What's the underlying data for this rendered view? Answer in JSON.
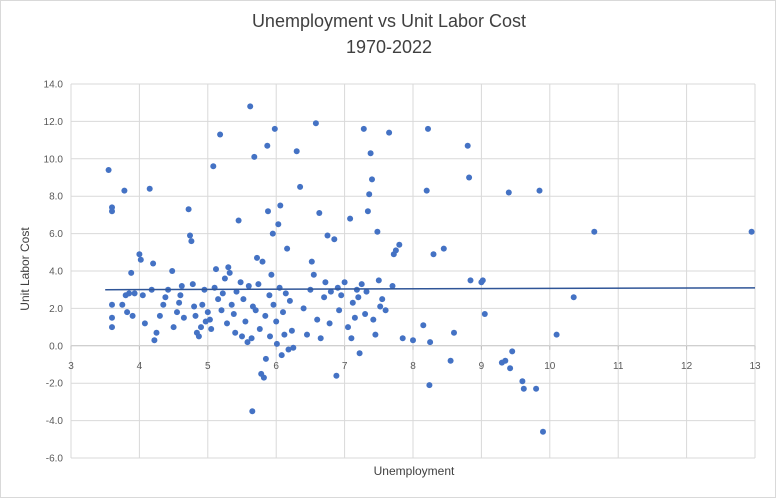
{
  "chart_data": {
    "type": "scatter",
    "title": "Unemployment vs Unit Labor Cost",
    "subtitle": "1970-2022",
    "xlabel": "Unemployment",
    "ylabel": "Unit Labor Cost",
    "xlim": [
      3,
      13
    ],
    "ylim": [
      -6,
      14
    ],
    "x_ticks": [
      "3",
      "4",
      "5",
      "6",
      "7",
      "8",
      "9",
      "10",
      "11",
      "12",
      "13"
    ],
    "y_ticks": [
      "-6.0",
      "-4.0",
      "-2.0",
      "0.0",
      "2.0",
      "4.0",
      "6.0",
      "8.0",
      "10.0",
      "12.0",
      "14.0"
    ],
    "grid": true,
    "legend": "none",
    "colors": {
      "points": "#4472c4",
      "trendline": "#2f5597",
      "grid": "#d9d9d9",
      "axis": "#bfbfbf"
    },
    "trendline": {
      "type": "linear",
      "x": [
        3.5,
        13
      ],
      "y": [
        3.0,
        3.1
      ]
    },
    "series": [
      {
        "points": [
          [
            3.55,
            9.4
          ],
          [
            3.6,
            7.4
          ],
          [
            3.6,
            7.2
          ],
          [
            3.6,
            2.2
          ],
          [
            3.6,
            1.5
          ],
          [
            3.6,
            1.0
          ],
          [
            3.75,
            2.2
          ],
          [
            3.78,
            8.3
          ],
          [
            3.8,
            2.7
          ],
          [
            3.82,
            1.8
          ],
          [
            3.85,
            2.8
          ],
          [
            3.88,
            3.9
          ],
          [
            3.9,
            1.6
          ],
          [
            3.93,
            2.8
          ],
          [
            4.0,
            4.9
          ],
          [
            4.02,
            4.6
          ],
          [
            4.05,
            2.7
          ],
          [
            4.08,
            1.2
          ],
          [
            4.15,
            8.4
          ],
          [
            4.18,
            3.0
          ],
          [
            4.2,
            4.4
          ],
          [
            4.22,
            0.3
          ],
          [
            4.25,
            0.7
          ],
          [
            4.3,
            1.6
          ],
          [
            4.35,
            2.2
          ],
          [
            4.38,
            2.6
          ],
          [
            4.42,
            3.0
          ],
          [
            4.48,
            4.0
          ],
          [
            4.5,
            1.0
          ],
          [
            4.55,
            1.8
          ],
          [
            4.58,
            2.3
          ],
          [
            4.6,
            2.7
          ],
          [
            4.62,
            3.2
          ],
          [
            4.65,
            1.5
          ],
          [
            4.72,
            7.3
          ],
          [
            4.74,
            5.9
          ],
          [
            4.76,
            5.6
          ],
          [
            4.78,
            3.3
          ],
          [
            4.8,
            2.1
          ],
          [
            4.82,
            1.6
          ],
          [
            4.84,
            0.7
          ],
          [
            4.87,
            0.5
          ],
          [
            4.9,
            1.0
          ],
          [
            4.92,
            2.2
          ],
          [
            4.95,
            3.0
          ],
          [
            4.97,
            1.3
          ],
          [
            5.0,
            1.8
          ],
          [
            5.03,
            1.4
          ],
          [
            5.05,
            0.9
          ],
          [
            5.08,
            9.6
          ],
          [
            5.1,
            3.1
          ],
          [
            5.12,
            4.1
          ],
          [
            5.15,
            2.5
          ],
          [
            5.18,
            11.3
          ],
          [
            5.2,
            1.9
          ],
          [
            5.22,
            2.8
          ],
          [
            5.25,
            3.6
          ],
          [
            5.28,
            1.2
          ],
          [
            5.3,
            4.2
          ],
          [
            5.32,
            3.9
          ],
          [
            5.35,
            2.2
          ],
          [
            5.38,
            1.7
          ],
          [
            5.4,
            0.7
          ],
          [
            5.42,
            2.9
          ],
          [
            5.45,
            6.7
          ],
          [
            5.48,
            3.4
          ],
          [
            5.5,
            0.5
          ],
          [
            5.52,
            2.5
          ],
          [
            5.55,
            1.3
          ],
          [
            5.58,
            0.2
          ],
          [
            5.6,
            3.2
          ],
          [
            5.62,
            12.8
          ],
          [
            5.64,
            0.4
          ],
          [
            5.66,
            2.1
          ],
          [
            5.68,
            10.1
          ],
          [
            5.7,
            1.9
          ],
          [
            5.72,
            4.7
          ],
          [
            5.74,
            3.3
          ],
          [
            5.76,
            0.9
          ],
          [
            5.78,
            -1.5
          ],
          [
            5.8,
            4.5
          ],
          [
            5.82,
            -1.7
          ],
          [
            5.84,
            1.6
          ],
          [
            5.85,
            -0.7
          ],
          [
            5.87,
            10.7
          ],
          [
            5.88,
            7.2
          ],
          [
            5.9,
            2.7
          ],
          [
            5.91,
            0.5
          ],
          [
            5.93,
            3.8
          ],
          [
            5.95,
            6.0
          ],
          [
            5.96,
            2.2
          ],
          [
            5.98,
            11.6
          ],
          [
            6.0,
            1.3
          ],
          [
            6.01,
            0.1
          ],
          [
            6.03,
            6.5
          ],
          [
            6.05,
            3.1
          ],
          [
            6.06,
            7.5
          ],
          [
            6.08,
            -0.5
          ],
          [
            6.1,
            1.8
          ],
          [
            6.12,
            0.6
          ],
          [
            6.14,
            2.8
          ],
          [
            6.16,
            5.2
          ],
          [
            6.18,
            -0.2
          ],
          [
            6.2,
            2.4
          ],
          [
            6.23,
            0.8
          ],
          [
            6.25,
            -0.1
          ],
          [
            6.3,
            10.4
          ],
          [
            6.35,
            8.5
          ],
          [
            5.65,
            -3.5
          ],
          [
            6.4,
            2.0
          ],
          [
            6.45,
            0.6
          ],
          [
            6.5,
            3.0
          ],
          [
            6.52,
            4.5
          ],
          [
            6.55,
            3.8
          ],
          [
            6.58,
            11.9
          ],
          [
            6.6,
            1.4
          ],
          [
            6.63,
            7.1
          ],
          [
            6.65,
            0.4
          ],
          [
            6.7,
            2.6
          ],
          [
            6.72,
            3.4
          ],
          [
            6.75,
            5.9
          ],
          [
            6.78,
            1.2
          ],
          [
            6.8,
            2.9
          ],
          [
            6.85,
            5.7
          ],
          [
            6.88,
            -1.6
          ],
          [
            6.9,
            3.1
          ],
          [
            6.92,
            1.9
          ],
          [
            6.95,
            2.7
          ],
          [
            7.0,
            3.4
          ],
          [
            7.05,
            1.0
          ],
          [
            7.08,
            6.8
          ],
          [
            7.1,
            0.4
          ],
          [
            7.12,
            2.3
          ],
          [
            7.15,
            1.5
          ],
          [
            7.18,
            3.0
          ],
          [
            7.2,
            2.6
          ],
          [
            7.22,
            -0.4
          ],
          [
            7.25,
            3.3
          ],
          [
            7.28,
            11.6
          ],
          [
            7.3,
            1.7
          ],
          [
            7.32,
            2.9
          ],
          [
            7.34,
            7.2
          ],
          [
            7.36,
            8.1
          ],
          [
            7.38,
            10.3
          ],
          [
            7.4,
            8.9
          ],
          [
            7.42,
            1.4
          ],
          [
            7.45,
            0.6
          ],
          [
            7.48,
            6.1
          ],
          [
            7.5,
            3.5
          ],
          [
            7.52,
            2.1
          ],
          [
            7.55,
            2.5
          ],
          [
            7.6,
            1.9
          ],
          [
            7.65,
            11.4
          ],
          [
            7.7,
            3.2
          ],
          [
            7.72,
            4.9
          ],
          [
            7.75,
            5.1
          ],
          [
            7.8,
            5.4
          ],
          [
            7.85,
            0.4
          ],
          [
            8.0,
            0.3
          ],
          [
            8.15,
            1.1
          ],
          [
            8.2,
            8.3
          ],
          [
            8.22,
            11.6
          ],
          [
            8.24,
            -2.1
          ],
          [
            8.25,
            0.2
          ],
          [
            8.3,
            4.9
          ],
          [
            8.45,
            5.2
          ],
          [
            8.55,
            -0.8
          ],
          [
            8.6,
            0.7
          ],
          [
            8.8,
            10.7
          ],
          [
            8.82,
            9.0
          ],
          [
            8.84,
            3.5
          ],
          [
            9.0,
            3.4
          ],
          [
            9.02,
            3.5
          ],
          [
            9.05,
            1.7
          ],
          [
            9.3,
            -0.9
          ],
          [
            9.35,
            -0.8
          ],
          [
            9.4,
            8.2
          ],
          [
            9.42,
            -1.2
          ],
          [
            9.45,
            -0.3
          ],
          [
            9.6,
            -1.9
          ],
          [
            9.62,
            -2.3
          ],
          [
            9.8,
            -2.3
          ],
          [
            9.85,
            8.3
          ],
          [
            9.9,
            -4.6
          ],
          [
            10.1,
            0.6
          ],
          [
            10.35,
            2.6
          ],
          [
            10.65,
            6.1
          ],
          [
            12.95,
            6.1
          ]
        ]
      }
    ]
  }
}
